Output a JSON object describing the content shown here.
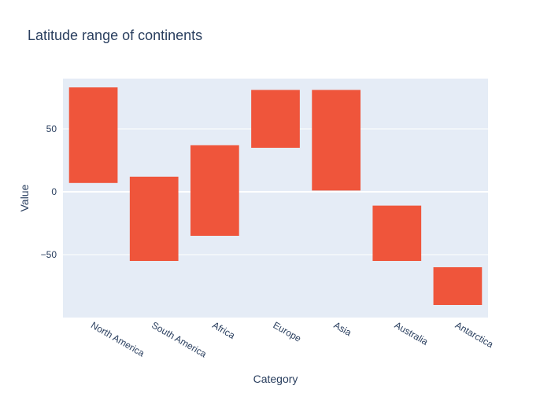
{
  "chart_data": {
    "type": "bar",
    "title": "Latitude range of continents",
    "xlabel": "Category",
    "ylabel": "Value",
    "categories": [
      "North America",
      "South America",
      "Africa",
      "Europe",
      "Asia",
      "Australia",
      "Antarctica"
    ],
    "series": [
      {
        "ranges": [
          [
            7,
            83
          ],
          [
            -55,
            12
          ],
          [
            -35,
            37
          ],
          [
            35,
            81
          ],
          [
            1,
            81
          ],
          [
            -55,
            -11
          ],
          [
            -90,
            -60
          ]
        ]
      }
    ],
    "ylim": [
      -100,
      90
    ],
    "yticks": [
      -50,
      0,
      50
    ],
    "ytick_labels": [
      "−50",
      "0",
      "50"
    ],
    "grid": true,
    "colors": {
      "bar": "#ef553b",
      "plot_bg": "#e5ecf6",
      "grid": "#ffffff",
      "text": "#2a3f5f"
    }
  }
}
